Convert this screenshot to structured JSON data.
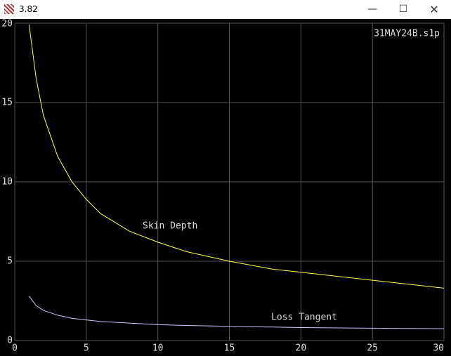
{
  "window_title": "3.82",
  "chart_data": {
    "type": "line",
    "title": "31MAY24B.s1p",
    "x": [
      1,
      1.5,
      2,
      3,
      4,
      5,
      6,
      8,
      10,
      12,
      15,
      18,
      20,
      25,
      30
    ],
    "series": [
      {
        "name": "Skin Depth",
        "color": "#ffff40",
        "values": [
          19.9,
          16.5,
          14.2,
          11.6,
          10.0,
          8.9,
          8.0,
          6.9,
          6.2,
          5.6,
          5.0,
          4.5,
          4.3,
          3.8,
          3.3
        ]
      },
      {
        "name": "Loss Tangent",
        "color": "#c8c8ff",
        "values": [
          2.8,
          2.2,
          1.9,
          1.6,
          1.4,
          1.3,
          1.2,
          1.1,
          1.0,
          0.95,
          0.9,
          0.85,
          0.82,
          0.78,
          0.75
        ]
      }
    ],
    "xlim": [
      0,
      30
    ],
    "xticks": [
      0,
      5,
      10,
      15,
      20,
      25,
      30
    ],
    "ylim": [
      0,
      20
    ],
    "yticks": [
      0,
      5,
      10,
      15,
      20
    ],
    "grid": true
  }
}
